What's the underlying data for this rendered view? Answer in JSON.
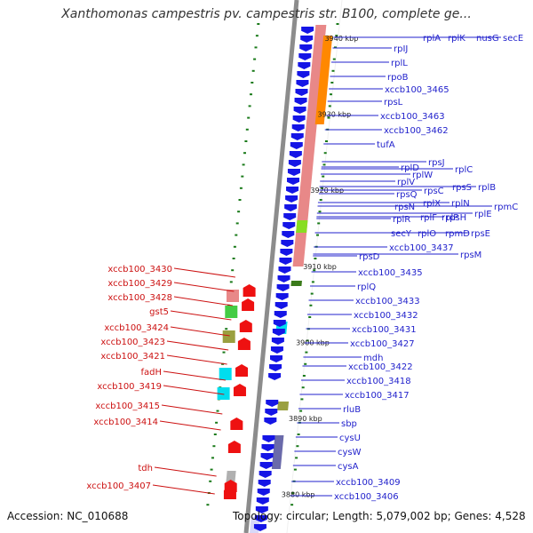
{
  "title": "Xanthomonas campestris pv. campestris str. B100, complete ge...",
  "footer": {
    "accession": "Accession: NC_010688",
    "summary": "Topology: circular; Length: 5,079,002 bp; Genes: 4,528"
  },
  "colors": {
    "forward_label": "#2222cc",
    "reverse_label": "#cc1111",
    "forward_gene": "#1515e6",
    "reverse_gene": "#ee1111",
    "tick": "#1a7a1a",
    "backbone": "#8c8c8c"
  },
  "kbp_marks": [
    "3940 kbp",
    "3930 kbp",
    "3920 kbp",
    "3910 kbp",
    "3900 kbp",
    "3890 kbp",
    "3880 kbp"
  ],
  "forward_genes": [
    "rplA",
    "rplK",
    "nusG",
    "secE",
    "rpIJ",
    "rplL",
    "rpoB",
    "xccb100_3465",
    "rpsL",
    "xccb100_3463",
    "xccb100_3462",
    "tufA",
    "rpsJ",
    "rplD",
    "rplC",
    "rplW",
    "rplV",
    "rpsS",
    "rplB",
    "rpsQ",
    "rpsC",
    "rplX",
    "rplN",
    "rpmC",
    "rpsN",
    "rplP",
    "rplE",
    "rplR",
    "rplF",
    "rpsH",
    "secY",
    "rplO",
    "rpmD",
    "rpsE",
    "xccb100_3437",
    "rpsM",
    "rpsD",
    "xccb100_3435",
    "rplQ",
    "xccb100_3433",
    "xccb100_3432",
    "xccb100_3431",
    "xccb100_3427",
    "mdh",
    "xccb100_3422",
    "xccb100_3418",
    "xccb100_3417",
    "rluB",
    "sbp",
    "cysU",
    "cysW",
    "cysA",
    "xccb100_3409",
    "xccb100_3406"
  ],
  "reverse_genes": [
    "xccb100_3430",
    "xccb100_3429",
    "xccb100_3428",
    "gst5",
    "xccb100_3424",
    "xccb100_3423",
    "xccb100_3421",
    "fadH",
    "xccb100_3419",
    "xccb100_3415",
    "xccb100_3414",
    "tdh",
    "xccb100_3407"
  ]
}
